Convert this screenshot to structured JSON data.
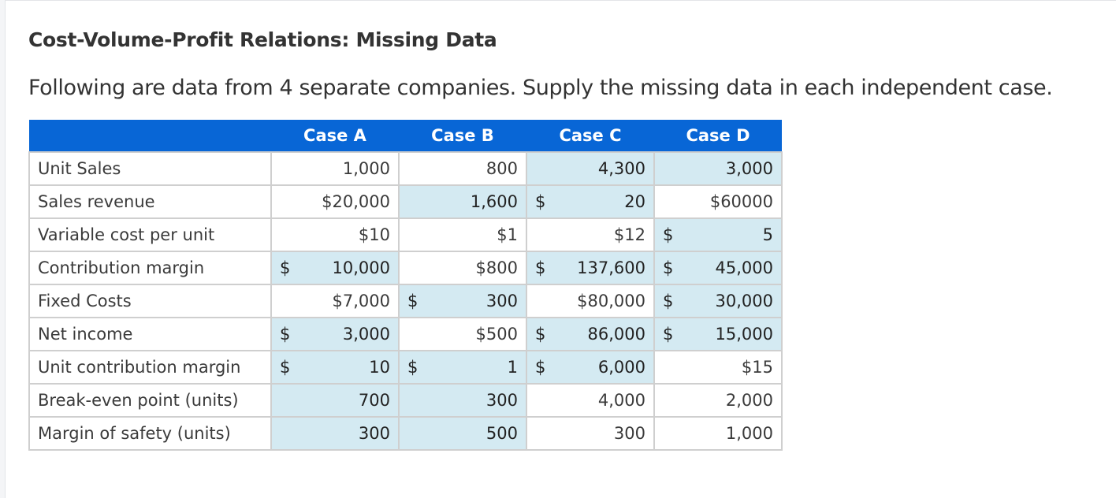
{
  "page": {
    "title": "Cost-Volume-Profit Relations: Missing Data",
    "intro": "Following are data from 4 separate companies. Supply the missing data in each independent case."
  },
  "table": {
    "columns": [
      "",
      "Case A",
      "Case B",
      "Case C",
      "Case D"
    ],
    "header_color": "#0866d6",
    "highlight_color": "#d4eaf2",
    "rows": [
      {
        "label": "Unit Sales",
        "cells": [
          {
            "prefix": "",
            "value": "1,000",
            "highlight": false
          },
          {
            "prefix": "",
            "value": "800",
            "highlight": false
          },
          {
            "prefix": "",
            "value": "4,300",
            "highlight": true
          },
          {
            "prefix": "",
            "value": "3,000",
            "highlight": true
          }
        ]
      },
      {
        "label": "Sales revenue",
        "cells": [
          {
            "prefix": "",
            "value": "$20,000",
            "highlight": false
          },
          {
            "prefix": "",
            "value": "1,600",
            "highlight": true
          },
          {
            "prefix": "$",
            "value": "20",
            "highlight": true
          },
          {
            "prefix": "",
            "value": "$60000",
            "highlight": false
          }
        ]
      },
      {
        "label": "Variable cost per unit",
        "cells": [
          {
            "prefix": "",
            "value": "$10",
            "highlight": false
          },
          {
            "prefix": "",
            "value": "$1",
            "highlight": false
          },
          {
            "prefix": "",
            "value": "$12",
            "highlight": false
          },
          {
            "prefix": "$",
            "value": "5",
            "highlight": true
          }
        ]
      },
      {
        "label": "Contribution margin",
        "cells": [
          {
            "prefix": "$",
            "value": "10,000",
            "highlight": true
          },
          {
            "prefix": "",
            "value": "$800",
            "highlight": false
          },
          {
            "prefix": "$",
            "value": "137,600",
            "highlight": true
          },
          {
            "prefix": "$",
            "value": "45,000",
            "highlight": true
          }
        ]
      },
      {
        "label": "Fixed Costs",
        "cells": [
          {
            "prefix": "",
            "value": "$7,000",
            "highlight": false
          },
          {
            "prefix": "$",
            "value": "300",
            "highlight": true
          },
          {
            "prefix": "",
            "value": "$80,000",
            "highlight": false
          },
          {
            "prefix": "$",
            "value": "30,000",
            "highlight": true
          }
        ]
      },
      {
        "label": "Net income",
        "cells": [
          {
            "prefix": "$",
            "value": "3,000",
            "highlight": true
          },
          {
            "prefix": "",
            "value": "$500",
            "highlight": false
          },
          {
            "prefix": "$",
            "value": "86,000",
            "highlight": true
          },
          {
            "prefix": "$",
            "value": "15,000",
            "highlight": true
          }
        ]
      },
      {
        "label": "Unit contribution margin",
        "cells": [
          {
            "prefix": "$",
            "value": "10",
            "highlight": true
          },
          {
            "prefix": "$",
            "value": "1",
            "highlight": true
          },
          {
            "prefix": "$",
            "value": "6,000",
            "highlight": true
          },
          {
            "prefix": "",
            "value": "$15",
            "highlight": false
          }
        ]
      },
      {
        "label": "Break-even point (units)",
        "cells": [
          {
            "prefix": "",
            "value": "700",
            "highlight": true
          },
          {
            "prefix": "",
            "value": "300",
            "highlight": true
          },
          {
            "prefix": "",
            "value": "4,000",
            "highlight": false
          },
          {
            "prefix": "",
            "value": "2,000",
            "highlight": false
          }
        ]
      },
      {
        "label": "Margin of safety (units)",
        "cells": [
          {
            "prefix": "",
            "value": "300",
            "highlight": true
          },
          {
            "prefix": "",
            "value": "500",
            "highlight": true
          },
          {
            "prefix": "",
            "value": "300",
            "highlight": false
          },
          {
            "prefix": "",
            "value": "1,000",
            "highlight": false
          }
        ]
      }
    ]
  }
}
